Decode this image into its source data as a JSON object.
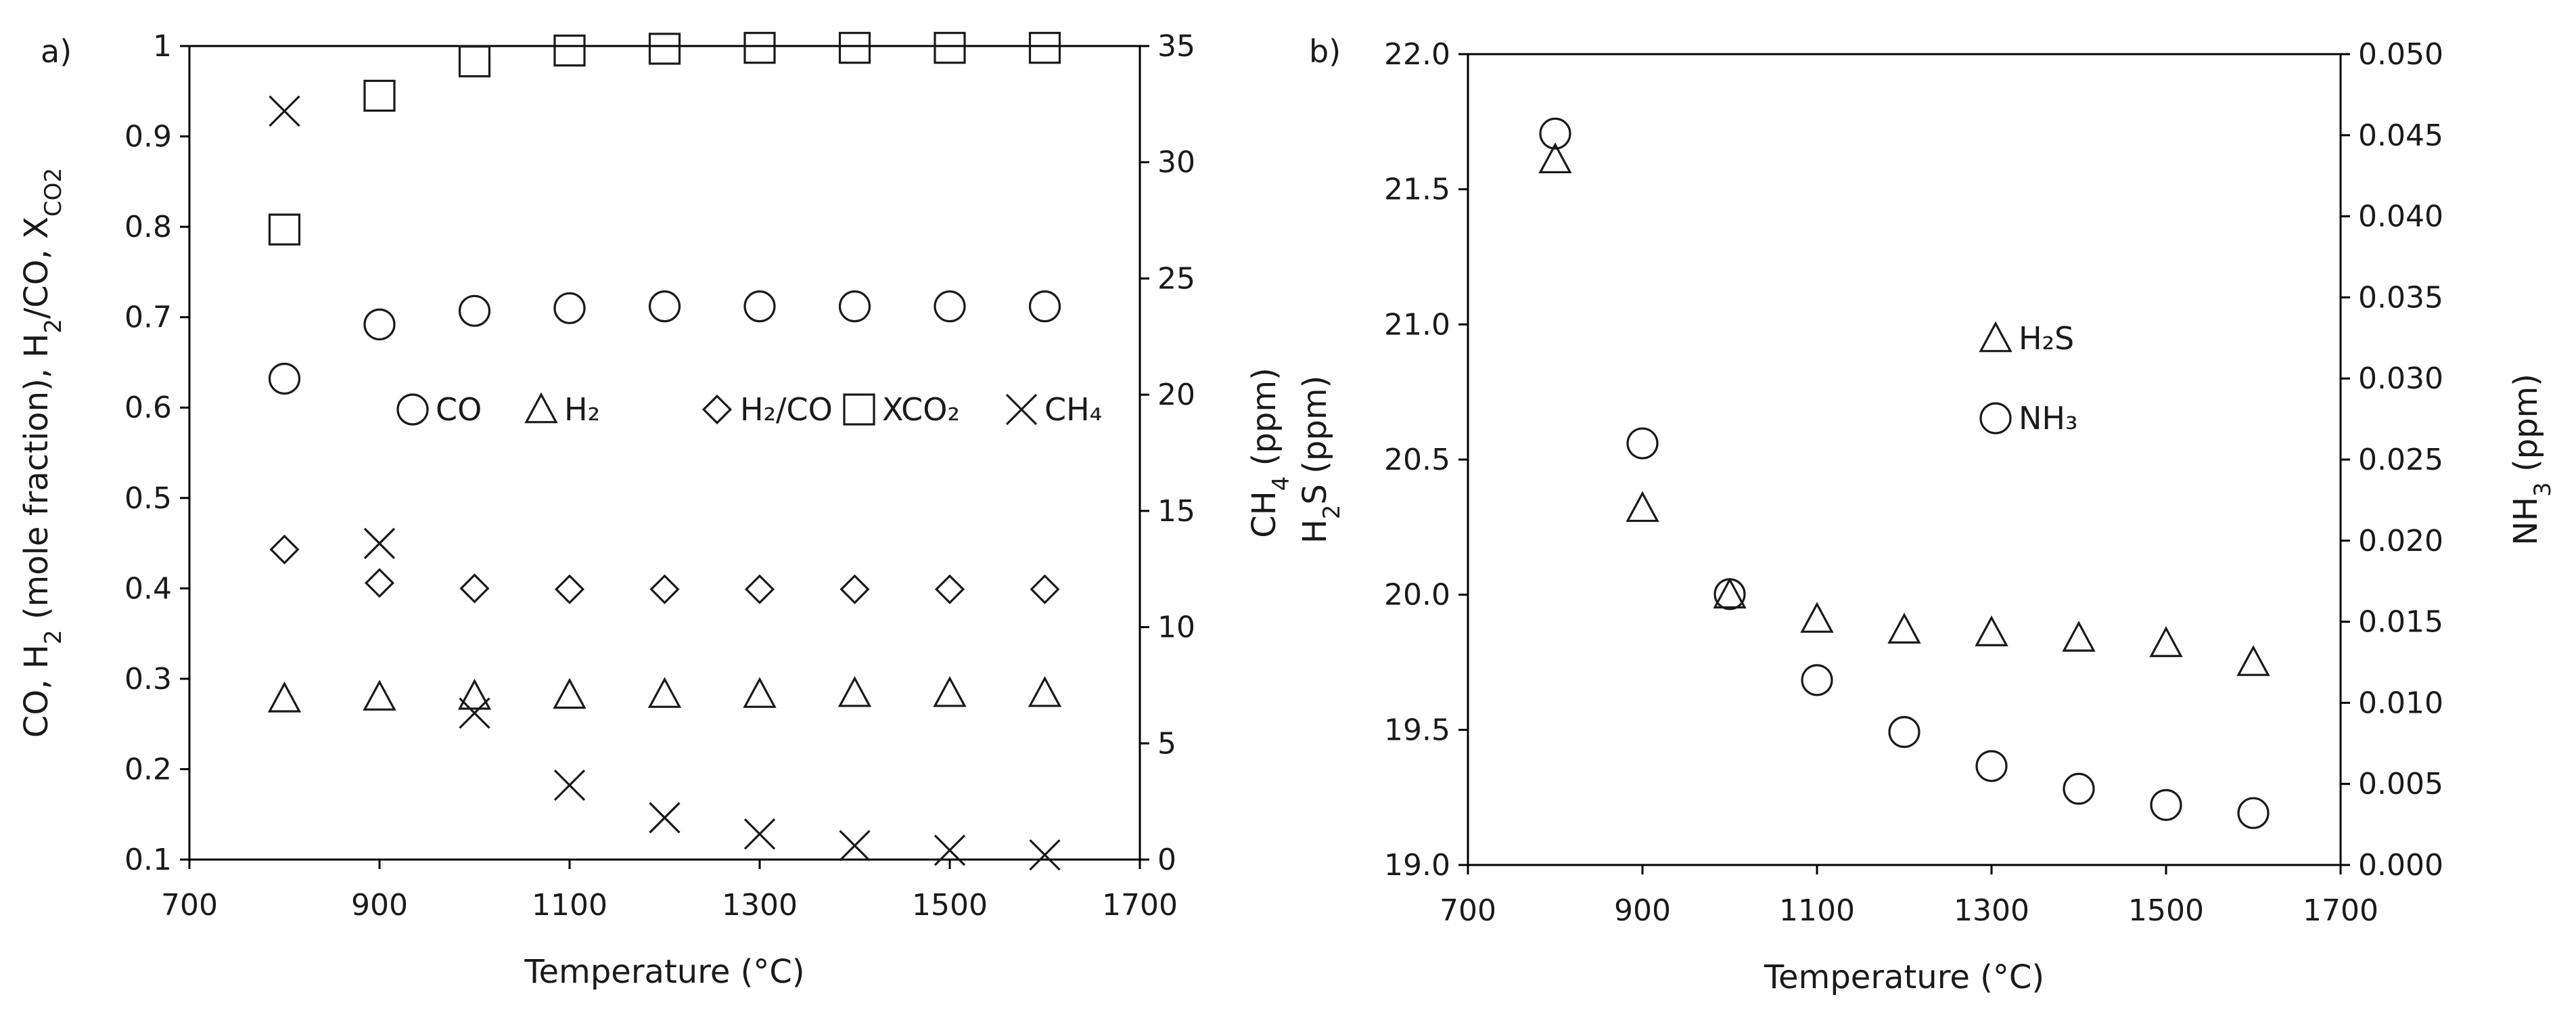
{
  "chart_data": [
    {
      "panel_label": "a)",
      "type": "scatter",
      "xlabel": "Temperature (°C)",
      "ylabel": "CO, H₂ (mole fraction), H₂/CO, X_CO2",
      "ylabel_parts": {
        "a": "CO, H",
        "a_sub": "2",
        "b": " (mole fraction), H",
        "b_sub": "2",
        "c": "/CO, X",
        "c_sub": "CO2"
      },
      "y2label": "CH₄ (ppm)",
      "y2label_parts": {
        "a": "CH",
        "a_sub": "4",
        "b": " (ppm)"
      },
      "xlim": [
        700,
        1700
      ],
      "x_ticks": [
        "700",
        "900",
        "1100",
        "1300",
        "1500",
        "1700"
      ],
      "ylim": [
        0.1,
        1.0
      ],
      "y_ticks": [
        "0.1",
        "0.2",
        "0.3",
        "0.4",
        "0.5",
        "0.6",
        "0.7",
        "0.8",
        "0.9",
        "1"
      ],
      "y2lim": [
        0,
        35
      ],
      "y2_ticks": [
        "0",
        "5",
        "10",
        "15",
        "20",
        "25",
        "30",
        "35"
      ],
      "legend_placement": "center",
      "series": [
        {
          "name": "CO",
          "marker": "circle",
          "axis": "left",
          "x": [
            800,
            900,
            1000,
            1100,
            1200,
            1300,
            1400,
            1500,
            1600
          ],
          "y": [
            0.632,
            0.692,
            0.707,
            0.71,
            0.712,
            0.712,
            0.712,
            0.712,
            0.712
          ]
        },
        {
          "name": "H₂",
          "marker": "triangle",
          "axis": "left",
          "x": [
            800,
            900,
            1000,
            1100,
            1200,
            1300,
            1400,
            1500,
            1600
          ],
          "y": [
            0.278,
            0.28,
            0.281,
            0.282,
            0.283,
            0.283,
            0.284,
            0.284,
            0.284
          ]
        },
        {
          "name": "H₂/CO",
          "marker": "diamond",
          "axis": "left",
          "x": [
            800,
            900,
            1000,
            1100,
            1200,
            1300,
            1400,
            1500,
            1600
          ],
          "y": [
            0.443,
            0.406,
            0.4,
            0.399,
            0.399,
            0.399,
            0.399,
            0.399,
            0.399
          ]
        },
        {
          "name": "XCO₂",
          "marker": "square",
          "axis": "left",
          "x": [
            800,
            900,
            1000,
            1100,
            1200,
            1300,
            1400,
            1500,
            1600
          ],
          "y": [
            0.797,
            0.945,
            0.983,
            0.995,
            0.997,
            0.998,
            0.998,
            0.998,
            0.998
          ]
        },
        {
          "name": "CH₄",
          "marker": "cross",
          "axis": "right",
          "x": [
            800,
            900,
            1000,
            1100,
            1200,
            1300,
            1400,
            1500,
            1600
          ],
          "y": [
            32.2,
            13.6,
            6.3,
            3.2,
            1.8,
            1.1,
            0.6,
            0.4,
            0.2
          ]
        }
      ]
    },
    {
      "panel_label": "b)",
      "type": "scatter",
      "xlabel": "Temperature (°C)",
      "ylabel": "H₂S (ppm)",
      "ylabel_parts": {
        "a": "H",
        "a_sub": "2",
        "b": "S (ppm)"
      },
      "y2label": "NH₃ (ppm)",
      "y2label_parts": {
        "a": "NH",
        "a_sub": "3",
        "b": " (ppm)"
      },
      "xlim": [
        700,
        1700
      ],
      "x_ticks": [
        "700",
        "900",
        "1100",
        "1300",
        "1500",
        "1700"
      ],
      "ylim": [
        19.0,
        22.0
      ],
      "y_ticks": [
        "19.0",
        "19.5",
        "20.0",
        "20.5",
        "21.0",
        "21.5",
        "22.0"
      ],
      "y2lim": [
        0.0,
        0.05
      ],
      "y2_ticks": [
        "0.000",
        "0.005",
        "0.010",
        "0.015",
        "0.020",
        "0.025",
        "0.030",
        "0.035",
        "0.040",
        "0.045",
        "0.050"
      ],
      "legend_placement": "center-right",
      "series": [
        {
          "name": "H₂S",
          "marker": "triangle",
          "axis": "left",
          "x": [
            800,
            900,
            1000,
            1100,
            1200,
            1300,
            1400,
            1500,
            1600
          ],
          "y": [
            21.61,
            20.32,
            20.0,
            19.91,
            19.87,
            19.86,
            19.84,
            19.82,
            19.75
          ]
        },
        {
          "name": "NH₃",
          "marker": "circle",
          "axis": "right",
          "x": [
            800,
            900,
            1000,
            1100,
            1200,
            1300,
            1400,
            1500,
            1600
          ],
          "y": [
            0.0451,
            0.026,
            0.0167,
            0.0114,
            0.0082,
            0.0061,
            0.0047,
            0.0037,
            0.0032
          ]
        }
      ]
    }
  ]
}
